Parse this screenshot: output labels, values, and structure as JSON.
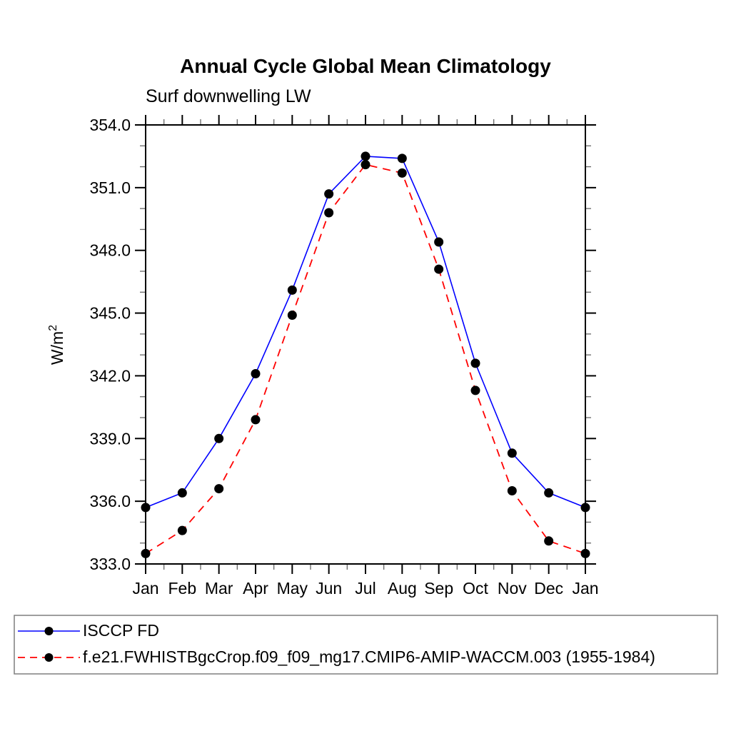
{
  "header": {
    "title": "Annual Cycle Global Mean Climatology",
    "subtitle": "Surf downwelling LW"
  },
  "chart_data": {
    "type": "line",
    "title": "Annual Cycle Global Mean Climatology",
    "subtitle": "Surf downwelling LW",
    "xlabel": "",
    "ylabel": "W/m²",
    "categories": [
      "Jan",
      "Feb",
      "Mar",
      "Apr",
      "May",
      "Jun",
      "Jul",
      "Aug",
      "Sep",
      "Oct",
      "Nov",
      "Dec",
      "Jan"
    ],
    "ylim": [
      333.0,
      354.0
    ],
    "ytick_major_step": 3.0,
    "ytick_minor_step": 1.0,
    "ytick_labels": [
      "333.0",
      "336.0",
      "339.0",
      "342.0",
      "345.0",
      "348.0",
      "351.0",
      "354.0"
    ],
    "grid": false,
    "legend_position": "bottom",
    "series": [
      {
        "name": "ISCCP FD",
        "color": "#0000ff",
        "line_style": "solid",
        "marker": "circle",
        "marker_color": "#000000",
        "values": [
          335.7,
          336.4,
          339.0,
          342.1,
          346.1,
          350.7,
          352.5,
          352.4,
          348.4,
          342.6,
          338.3,
          336.4,
          335.7
        ]
      },
      {
        "name": "f.e21.FWHISTBgcCrop.f09_f09_mg17.CMIP6-AMIP-WACCM.003 (1955-1984)",
        "color": "#ff0000",
        "line_style": "dashed",
        "marker": "circle",
        "marker_color": "#000000",
        "values": [
          333.5,
          334.6,
          336.6,
          339.9,
          344.9,
          349.8,
          352.1,
          351.7,
          347.1,
          341.3,
          336.5,
          334.1,
          333.5
        ]
      }
    ]
  },
  "colors": {
    "axis": "#000000",
    "minor_tick": "#666666",
    "legend_border": "#7f7f7f",
    "background": "#ffffff"
  }
}
